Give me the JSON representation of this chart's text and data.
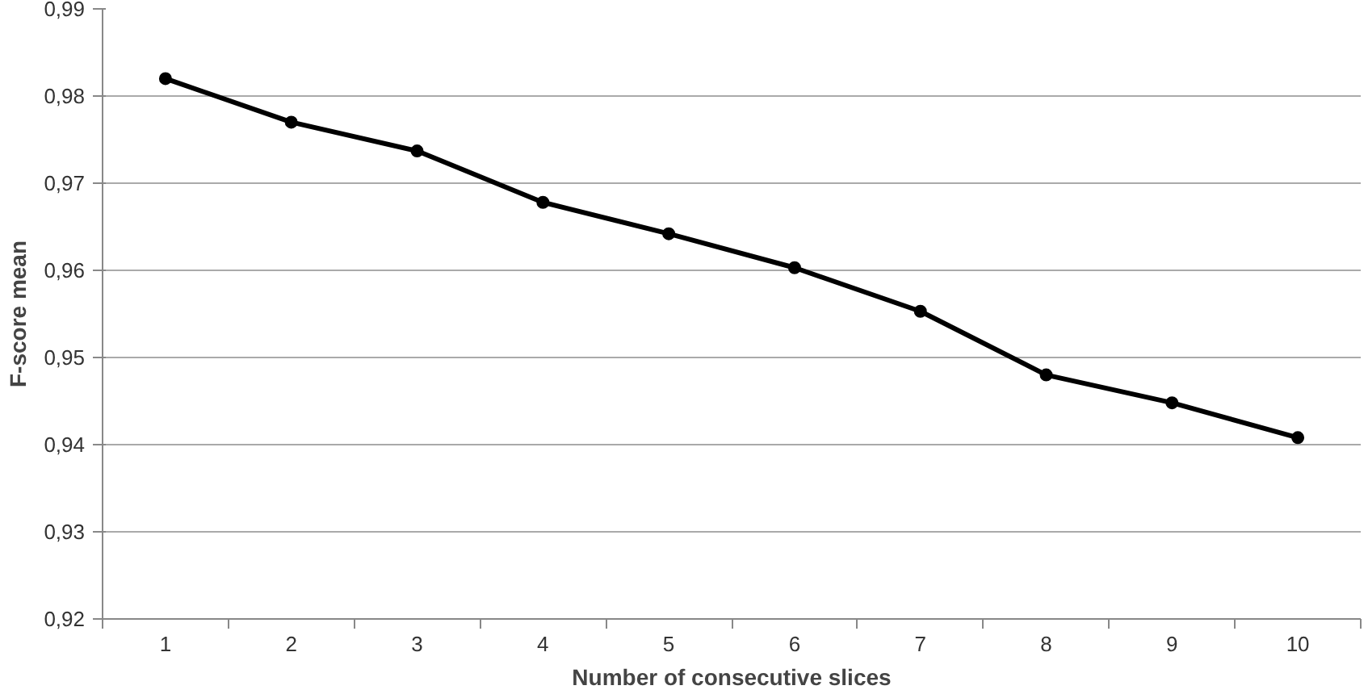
{
  "chart_data": {
    "type": "line",
    "xlabel": "Number of consecutive slices",
    "ylabel": "F-score mean",
    "categories": [
      "1",
      "2",
      "3",
      "4",
      "5",
      "6",
      "7",
      "8",
      "9",
      "10"
    ],
    "series": [
      {
        "color": "#000000",
        "values": [
          0.982,
          0.977,
          0.9737,
          0.9678,
          0.9642,
          0.9603,
          0.9553,
          0.948,
          0.9448,
          0.9408
        ]
      }
    ],
    "ylim": [
      0.92,
      0.99
    ],
    "yticks": [
      {
        "value": 0.92,
        "label": "0,92"
      },
      {
        "value": 0.93,
        "label": "0,93"
      },
      {
        "value": 0.94,
        "label": "0,94"
      },
      {
        "value": 0.95,
        "label": "0,95"
      },
      {
        "value": 0.96,
        "label": "0,96"
      },
      {
        "value": 0.97,
        "label": "0,97"
      },
      {
        "value": 0.98,
        "label": "0,98"
      },
      {
        "value": 0.99,
        "label": "0,99"
      }
    ],
    "grid": "y",
    "marker": "circle",
    "line_style": "solid"
  }
}
